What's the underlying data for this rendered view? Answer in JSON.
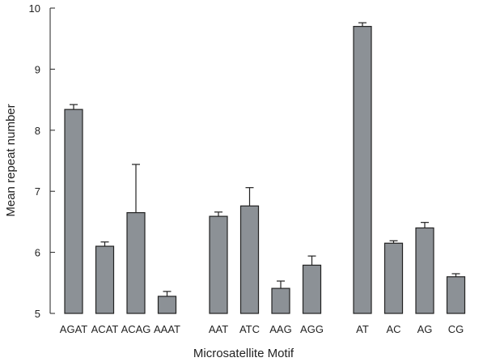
{
  "chart_data": {
    "type": "bar",
    "title": "",
    "xlabel": "Microsatellite Motif",
    "ylabel": "Mean repeat number",
    "ylim": [
      5,
      10
    ],
    "yticks": [
      5,
      6,
      7,
      8,
      9,
      10
    ],
    "grid": false,
    "legend": "none",
    "groups": [
      [
        "AGAT",
        "ACAT",
        "ACAG",
        "AAAT"
      ],
      [
        "AAT",
        "ATC",
        "AAG",
        "AGG"
      ],
      [
        "AT",
        "AC",
        "AG",
        "CG"
      ]
    ],
    "categories": [
      "AGAT",
      "ACAT",
      "ACAG",
      "AAAT",
      "AAT",
      "ATC",
      "AAG",
      "AGG",
      "AT",
      "AC",
      "AG",
      "CG"
    ],
    "values": [
      8.34,
      6.1,
      6.65,
      5.28,
      6.59,
      6.76,
      5.41,
      5.79,
      9.7,
      6.15,
      6.4,
      5.6
    ],
    "error_upper": [
      0.08,
      0.07,
      0.79,
      0.08,
      0.07,
      0.3,
      0.12,
      0.15,
      0.06,
      0.04,
      0.09,
      0.05
    ],
    "bar_color": "#8c9196",
    "bar_edge_color": "#222222"
  }
}
